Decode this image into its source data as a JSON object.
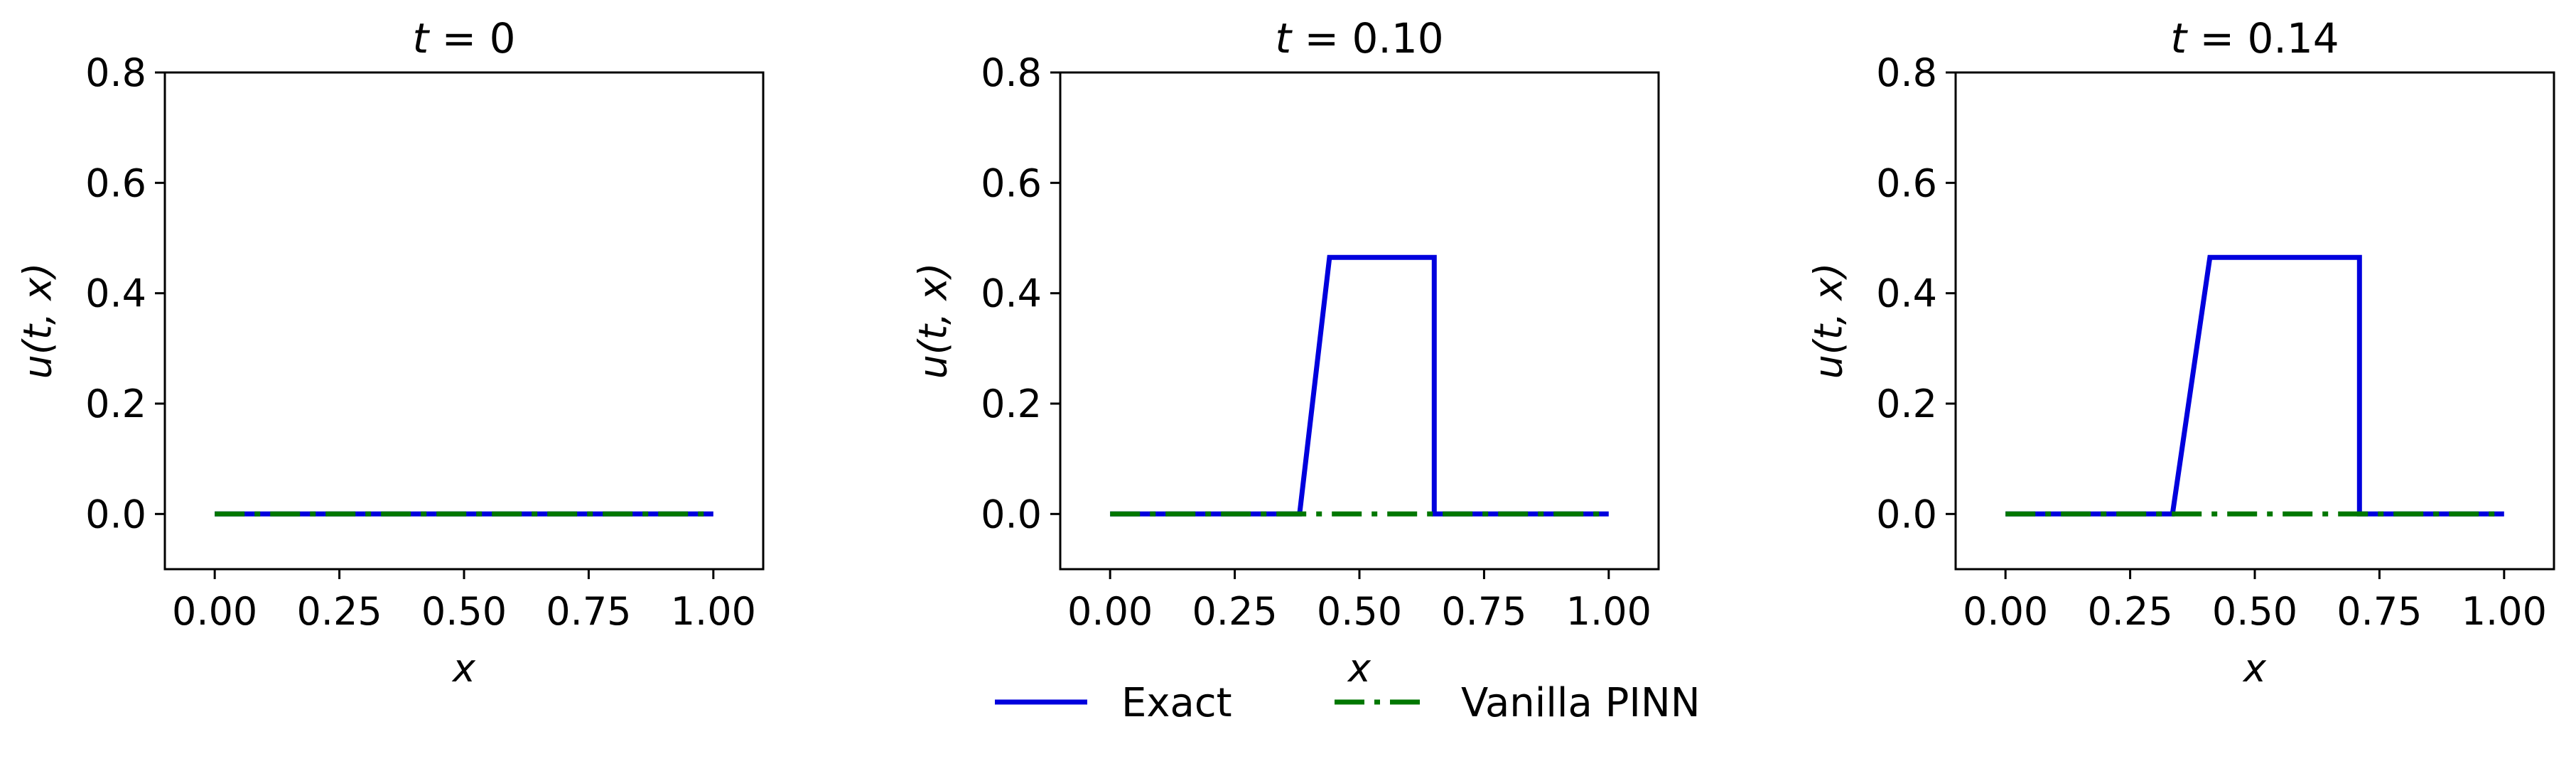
{
  "chart_data": [
    {
      "type": "line",
      "title": "t = 0",
      "title_var": "t",
      "title_value": "0",
      "xlabel": "x",
      "ylabel": "u(t, x)",
      "xlim": [
        -0.1,
        1.1
      ],
      "ylim": [
        -0.1,
        0.8
      ],
      "xticks": [
        0.0,
        0.25,
        0.5,
        0.75,
        1.0
      ],
      "xtick_labels": [
        "0.00",
        "0.25",
        "0.50",
        "0.75",
        "1.00"
      ],
      "yticks": [
        0.0,
        0.2,
        0.4,
        0.6,
        0.8
      ],
      "ytick_labels": [
        "0.0",
        "0.2",
        "0.4",
        "0.6",
        "0.8"
      ],
      "grid": false,
      "series": [
        {
          "name": "Exact",
          "color": "#0000dd",
          "style": "solid",
          "x": [
            0.0,
            1.0
          ],
          "y": [
            0.0,
            0.0
          ]
        },
        {
          "name": "Vanilla PINN",
          "color": "#007700",
          "style": "dashdot",
          "x": [
            0.0,
            1.0
          ],
          "y": [
            0.0,
            0.0
          ]
        }
      ]
    },
    {
      "type": "line",
      "title": "t = 0.10",
      "title_var": "t",
      "title_value": "0.10",
      "xlabel": "x",
      "ylabel": "u(t, x)",
      "xlim": [
        -0.1,
        1.1
      ],
      "ylim": [
        -0.1,
        0.8
      ],
      "xticks": [
        0.0,
        0.25,
        0.5,
        0.75,
        1.0
      ],
      "xtick_labels": [
        "0.00",
        "0.25",
        "0.50",
        "0.75",
        "1.00"
      ],
      "yticks": [
        0.0,
        0.2,
        0.4,
        0.6,
        0.8
      ],
      "ytick_labels": [
        "0.0",
        "0.2",
        "0.4",
        "0.6",
        "0.8"
      ],
      "grid": false,
      "series": [
        {
          "name": "Exact",
          "color": "#0000dd",
          "style": "solid",
          "x": [
            0.0,
            0.38,
            0.44,
            0.65,
            0.65,
            1.0
          ],
          "y": [
            0.0,
            0.0,
            0.465,
            0.465,
            0.0,
            0.0
          ]
        },
        {
          "name": "Vanilla PINN",
          "color": "#007700",
          "style": "dashdot",
          "x": [
            0.0,
            1.0
          ],
          "y": [
            0.0,
            0.0
          ]
        }
      ]
    },
    {
      "type": "line",
      "title": "t = 0.14",
      "title_var": "t",
      "title_value": "0.14",
      "xlabel": "x",
      "ylabel": "u(t, x)",
      "xlim": [
        -0.1,
        1.1
      ],
      "ylim": [
        -0.1,
        0.8
      ],
      "xticks": [
        0.0,
        0.25,
        0.5,
        0.75,
        1.0
      ],
      "xtick_labels": [
        "0.00",
        "0.25",
        "0.50",
        "0.75",
        "1.00"
      ],
      "yticks": [
        0.0,
        0.2,
        0.4,
        0.6,
        0.8
      ],
      "ytick_labels": [
        "0.0",
        "0.2",
        "0.4",
        "0.6",
        "0.8"
      ],
      "grid": false,
      "series": [
        {
          "name": "Exact",
          "color": "#0000dd",
          "style": "solid",
          "x": [
            0.0,
            0.335,
            0.41,
            0.71,
            0.71,
            1.0
          ],
          "y": [
            0.0,
            0.0,
            0.465,
            0.465,
            0.0,
            0.0
          ]
        },
        {
          "name": "Vanilla PINN",
          "color": "#007700",
          "style": "dashdot",
          "x": [
            0.0,
            1.0
          ],
          "y": [
            0.0,
            0.0
          ]
        }
      ]
    }
  ],
  "legend": {
    "placement": "bottom-center",
    "entries": [
      {
        "label": "Exact",
        "color": "#0000dd",
        "style": "solid"
      },
      {
        "label": "Vanilla PINN",
        "color": "#007700",
        "style": "dashdot"
      }
    ]
  }
}
